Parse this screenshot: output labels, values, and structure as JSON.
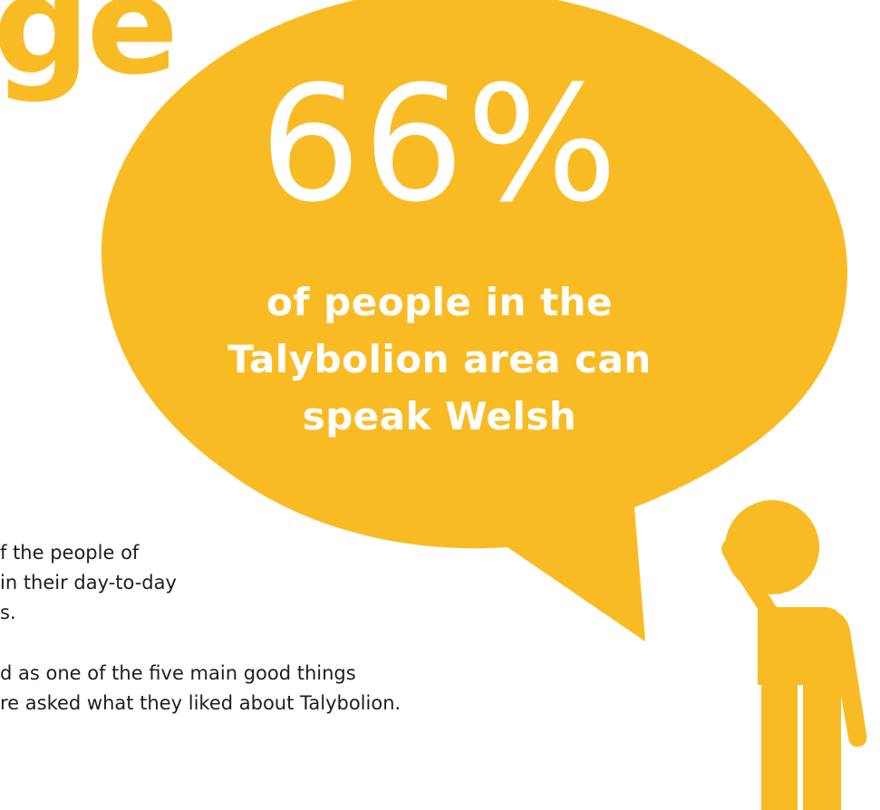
{
  "heading_fragment": "ge",
  "stat": {
    "percent": "66%",
    "caption_lines": [
      "of people in the",
      "Talybolion area can",
      "speak Welsh"
    ]
  },
  "paragraphs": [
    {
      "lines": [
        "f the people of",
        " in their day-to-day",
        "s."
      ]
    },
    {
      "lines": [
        "d as one of the five main good things",
        "re asked what they liked about Talybolion."
      ]
    }
  ],
  "colors": {
    "accent": "#f9bb24",
    "stat_text": "#ffffff",
    "body_text": "#1e1e1e"
  },
  "icons": {
    "speech_bubble": "speech-bubble-icon",
    "person": "thinking-person-icon"
  }
}
